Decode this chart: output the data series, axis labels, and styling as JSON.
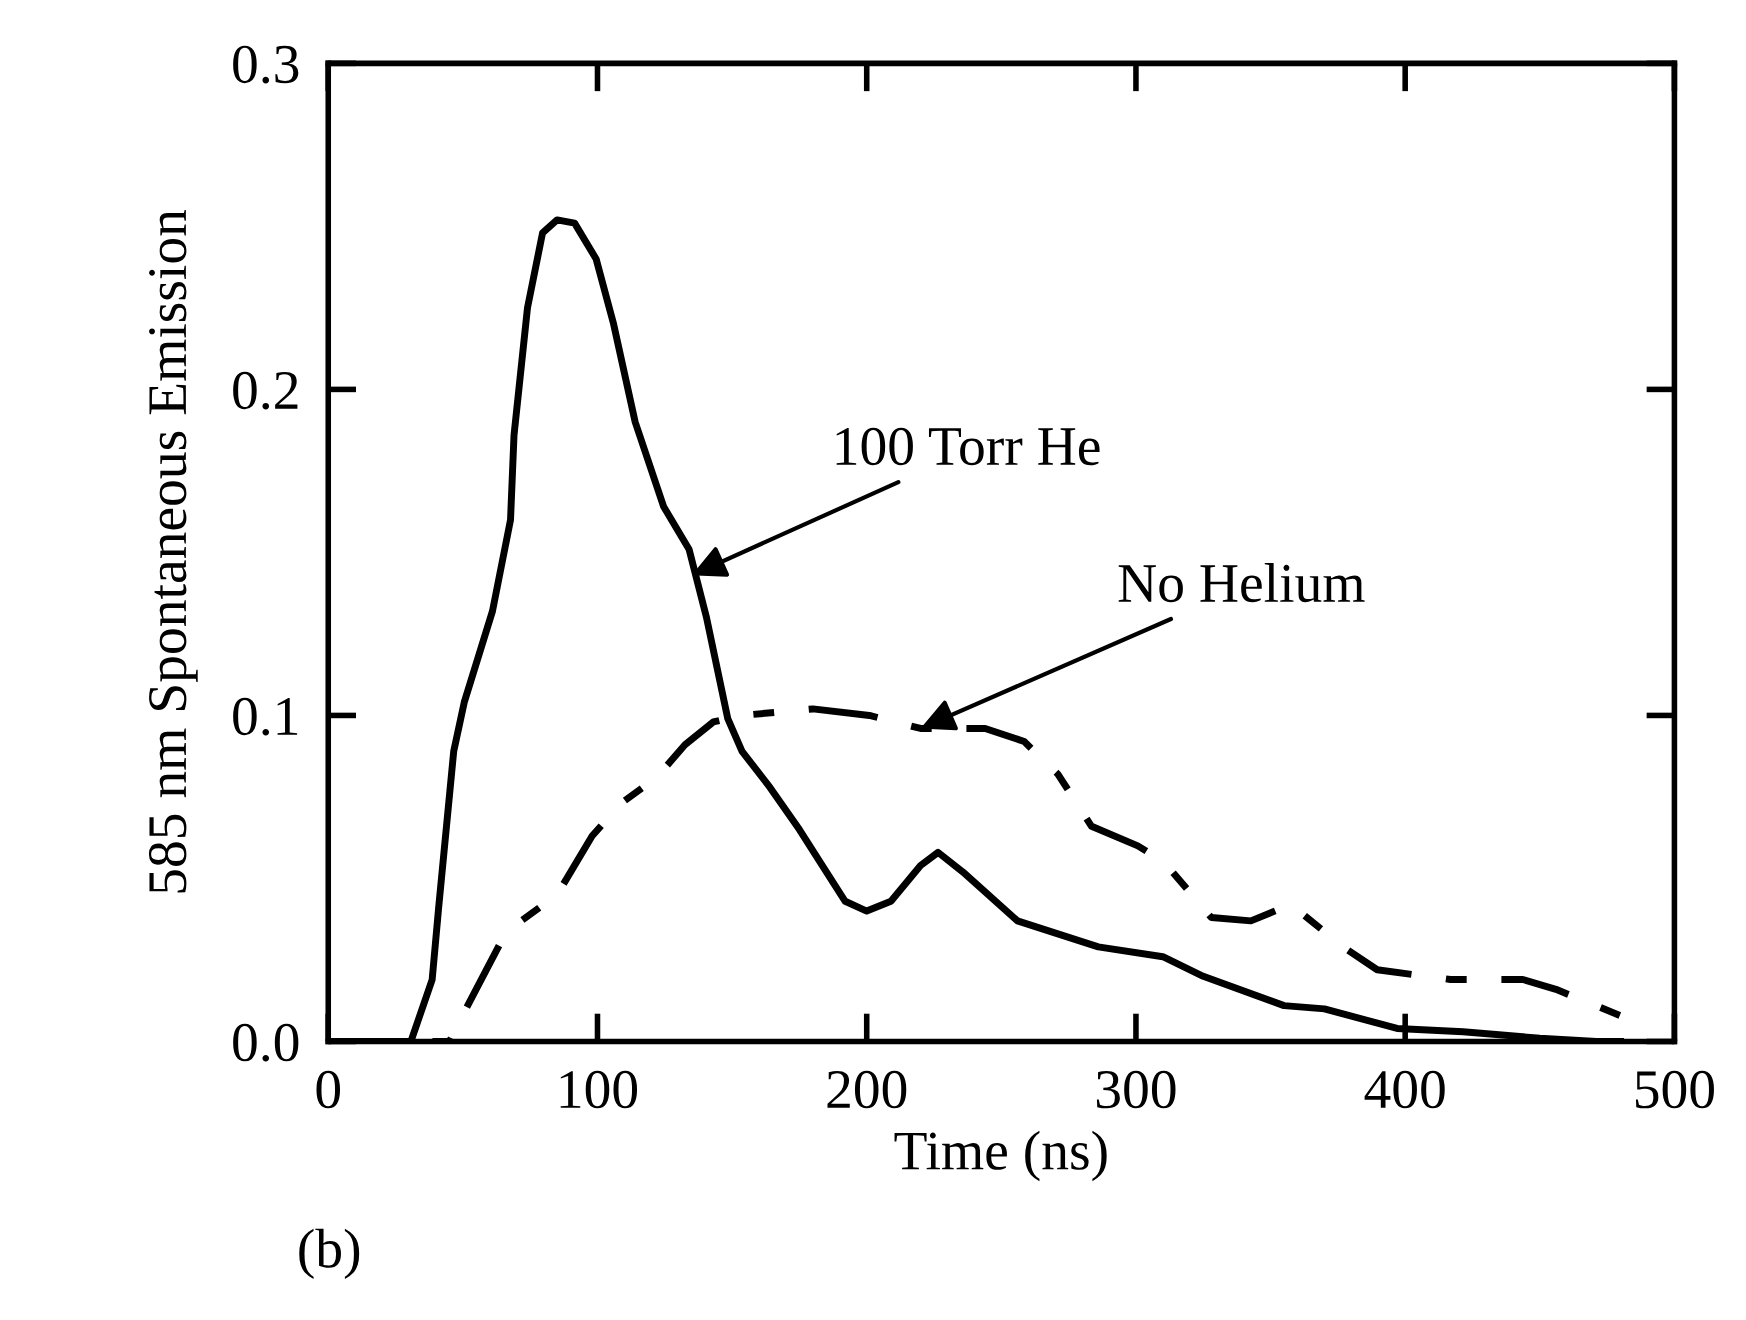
{
  "chart_data": {
    "type": "line",
    "xlabel": "Time (ns)",
    "ylabel": "585 nm Spontaneous Emission",
    "xlim": [
      0,
      500
    ],
    "ylim": [
      0,
      0.3
    ],
    "xticks": [
      0,
      100,
      200,
      300,
      400,
      500
    ],
    "yticks": [
      {
        "value": 0,
        "label": "0.0"
      },
      {
        "value": 0.1,
        "label": "0.1"
      },
      {
        "value": 0.2,
        "label": "0.2"
      },
      {
        "value": 0.3,
        "label": "0.3"
      }
    ],
    "grid": false,
    "marker": "none",
    "series": [
      {
        "color": "#000000",
        "line_style": "solid",
        "x": [
          0,
          30.7,
          38.6,
          41,
          46.6,
          50.5,
          61,
          67.7,
          69,
          74,
          79.6,
          85,
          91.5,
          99.5,
          106,
          114,
          124.6,
          134,
          140.5,
          148.4,
          153.7,
          164,
          175,
          185,
          192,
          200,
          209,
          220,
          226.5,
          235.7,
          256,
          286,
          310,
          325,
          355,
          370,
          397,
          421.5,
          450,
          471,
          480
        ],
        "values": [
          0,
          0,
          0.019,
          0.041,
          0.089,
          0.104,
          0.132,
          0.16,
          0.186,
          0.225,
          0.248,
          0.252,
          0.251,
          0.24,
          0.22,
          0.19,
          0.164,
          0.151,
          0.13,
          0.099,
          0.089,
          0.078,
          0.065,
          0.052,
          0.043,
          0.04,
          0.043,
          0.054,
          0.058,
          0.052,
          0.037,
          0.029,
          0.026,
          0.02,
          0.011,
          0.01,
          0.004,
          0.003,
          0.001,
          0,
          0
        ]
      },
      {
        "color": "#000000",
        "line_style": "dashdot",
        "x": [
          0,
          45,
          50.5,
          63.8,
          71.7,
          85,
          98,
          108.7,
          122,
          132.5,
          143,
          153.7,
          180,
          201,
          220,
          244,
          258.5,
          271,
          283.5,
          300.7,
          310.5,
          328,
          342.7,
          357.5,
          377,
          389.6,
          416.8,
          443.7,
          456,
          483.5
        ],
        "values": [
          0,
          0,
          0.009,
          0.03,
          0.037,
          0.045,
          0.063,
          0.073,
          0.081,
          0.091,
          0.098,
          0.1,
          0.102,
          0.1,
          0.096,
          0.096,
          0.092,
          0.082,
          0.066,
          0.06,
          0.055,
          0.038,
          0.037,
          0.042,
          0.029,
          0.022,
          0.019,
          0.019,
          0.016,
          0.0067
        ]
      }
    ],
    "annotations": [
      {
        "text": "100 Torr He",
        "x": 135,
        "y": 0.143
      },
      {
        "text": "No Helium",
        "x": 220,
        "y": 0.096
      },
      "(b)"
    ]
  }
}
